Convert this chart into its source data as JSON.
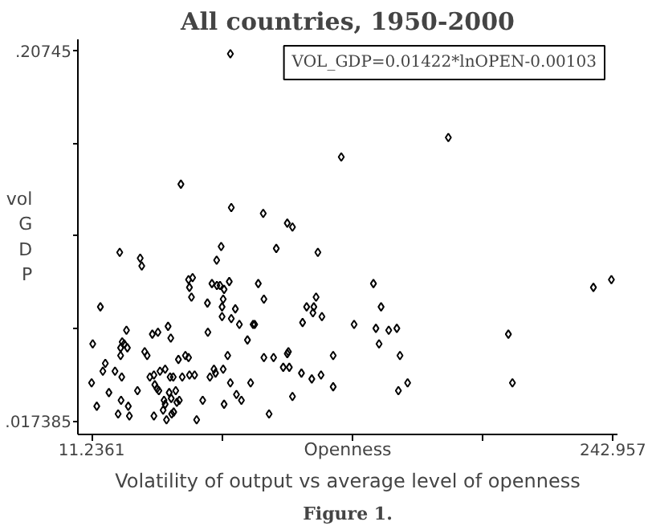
{
  "chart_data": {
    "type": "scatter",
    "title": "All countries, 1950-2000",
    "xlabel": "Openness",
    "ylabel": "vol GDP",
    "annotations": [
      "VOL_GDP=0.01422*lnOPEN-0.00103",
      "Volatility of output vs average level of openness",
      "Figure 1."
    ],
    "xlim": [
      5.1,
      245.0
    ],
    "ylim": [
      0.0105,
      0.2134
    ],
    "xticks": [
      {
        "value": 11.2361,
        "label": "11.2361"
      },
      {
        "value": 69.1664,
        "label": null
      },
      {
        "value": 127.097,
        "label": null
      },
      {
        "value": 185.027,
        "label": null
      },
      {
        "value": 242.957,
        "label": "242.957"
      }
    ],
    "yticks": [
      {
        "value": 0.017385,
        "label": ".017385"
      },
      {
        "value": 0.0649,
        "label": null
      },
      {
        "value": 0.1124,
        "label": null
      },
      {
        "value": 0.1599,
        "label": null
      },
      {
        "value": 0.20745,
        "label": ".20745"
      }
    ],
    "grid": false,
    "marker": "diamond",
    "series": [
      {
        "color": "#000000",
        "x": [
          72.9,
          50.9,
          73.3,
          87.5,
          98.2,
          100.5,
          122.2,
          169.8,
          11.7,
          11.2,
          15.1,
          13.5,
          17.3,
          16.2,
          18.9,
          23.7,
          23.0,
          21.6,
          24.1,
          24.8,
          25.7,
          26.7,
          27.1,
          24.1,
          24.6,
          24.3,
          27.5,
          28.0,
          32.8,
          33.5,
          31.6,
          34.8,
          35.9,
          38.2,
          40.7,
          45.2,
          46.4,
          37.1,
          38.9,
          39.3,
          40.3,
          41.1,
          41.6,
          43.9,
          38.9,
          43.4,
          43.9,
          43.0,
          44.5,
          45.7,
          46.6,
          46.1,
          47.5,
          46.8,
          47.7,
          48.6,
          49.1,
          50.2,
          49.8,
          51.5,
          52.9,
          54.3,
          54.7,
          57.0,
          54.7,
          54.3,
          56.1,
          55.6,
          57.9,
          60.6,
          62.7,
          62.9,
          63.8,
          65.6,
          66.3,
          64.7,
          66.9,
          68.3,
          70.1,
          66.8,
          68.8,
          69.7,
          69.2,
          69.2,
          69.7,
          71.7,
          70.1,
          72.4,
          73.3,
          72.9,
          75.1,
          76.9,
          75.6,
          77.8,
          80.5,
          81.9,
          83.0,
          83.7,
          85.3,
          87.8,
          87.8,
          90.1,
          92.1,
          93.3,
          96.4,
          98.2,
          99.1,
          98.7,
          100.5,
          104.5,
          105.0,
          106.8,
          109.1,
          109.6,
          110.0,
          111.0,
          111.8,
          113.2,
          113.6,
          118.6,
          118.6,
          136.5,
          139.9,
          127.9,
          137.6,
          139.0,
          143.3,
          146.9,
          148.3,
          151.7,
          147.6,
          196.5,
          198.3,
          234.3,
          242.3
        ],
        "values": [
          0.206,
          0.139,
          0.127,
          0.124,
          0.119,
          0.117,
          0.153,
          0.163,
          0.057,
          0.037,
          0.076,
          0.025,
          0.047,
          0.043,
          0.032,
          0.104,
          0.021,
          0.043,
          0.055,
          0.058,
          0.057,
          0.064,
          0.055,
          0.051,
          0.04,
          0.028,
          0.025,
          0.02,
          0.101,
          0.097,
          0.033,
          0.053,
          0.051,
          0.062,
          0.063,
          0.066,
          0.06,
          0.04,
          0.041,
          0.036,
          0.034,
          0.033,
          0.043,
          0.044,
          0.02,
          0.028,
          0.026,
          0.023,
          0.018,
          0.032,
          0.029,
          0.04,
          0.04,
          0.021,
          0.022,
          0.033,
          0.027,
          0.028,
          0.049,
          0.04,
          0.051,
          0.05,
          0.041,
          0.041,
          0.086,
          0.09,
          0.091,
          0.081,
          0.018,
          0.028,
          0.078,
          0.063,
          0.04,
          0.044,
          0.042,
          0.088,
          0.087,
          0.087,
          0.085,
          0.1,
          0.107,
          0.08,
          0.076,
          0.071,
          0.044,
          0.051,
          0.026,
          0.089,
          0.07,
          0.037,
          0.075,
          0.067,
          0.031,
          0.028,
          0.059,
          0.037,
          0.067,
          0.067,
          0.088,
          0.08,
          0.05,
          0.021,
          0.05,
          0.106,
          0.045,
          0.052,
          0.045,
          0.053,
          0.03,
          0.042,
          0.068,
          0.076,
          0.039,
          0.073,
          0.076,
          0.081,
          0.104,
          0.041,
          0.071,
          0.051,
          0.035,
          0.088,
          0.076,
          0.067,
          0.065,
          0.057,
          0.064,
          0.065,
          0.051,
          0.037,
          0.033,
          0.062,
          0.037,
          0.086,
          0.09
        ]
      }
    ]
  }
}
